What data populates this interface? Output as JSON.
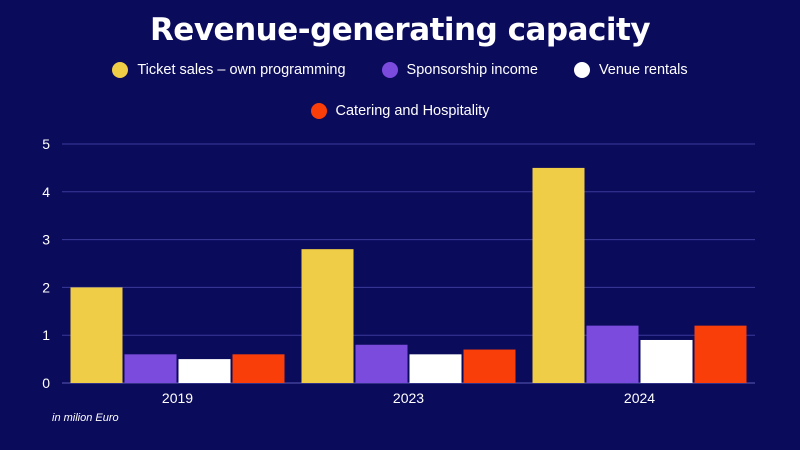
{
  "chart_data": {
    "type": "bar",
    "title": "Revenue-generating capacity",
    "categories": [
      "2019",
      "2023",
      "2024"
    ],
    "series": [
      {
        "name": "Ticket sales – own programming",
        "color": "#f0cd46",
        "values": [
          2.0,
          2.8,
          4.5
        ]
      },
      {
        "name": "Sponsorship income",
        "color": "#7b4bde",
        "values": [
          0.6,
          0.8,
          1.2
        ]
      },
      {
        "name": "Venue rentals",
        "color": "#ffffff",
        "values": [
          0.5,
          0.6,
          0.9
        ]
      },
      {
        "name": "Catering and Hospitality",
        "color": "#fa3e0a",
        "values": [
          0.6,
          0.7,
          1.2
        ]
      }
    ],
    "yticks": [
      "0",
      "1",
      "2",
      "3",
      "4",
      "5"
    ],
    "ylim": [
      0,
      5
    ],
    "xlabel": "",
    "ylabel": "",
    "grid": true,
    "note": "in milion Euro"
  }
}
